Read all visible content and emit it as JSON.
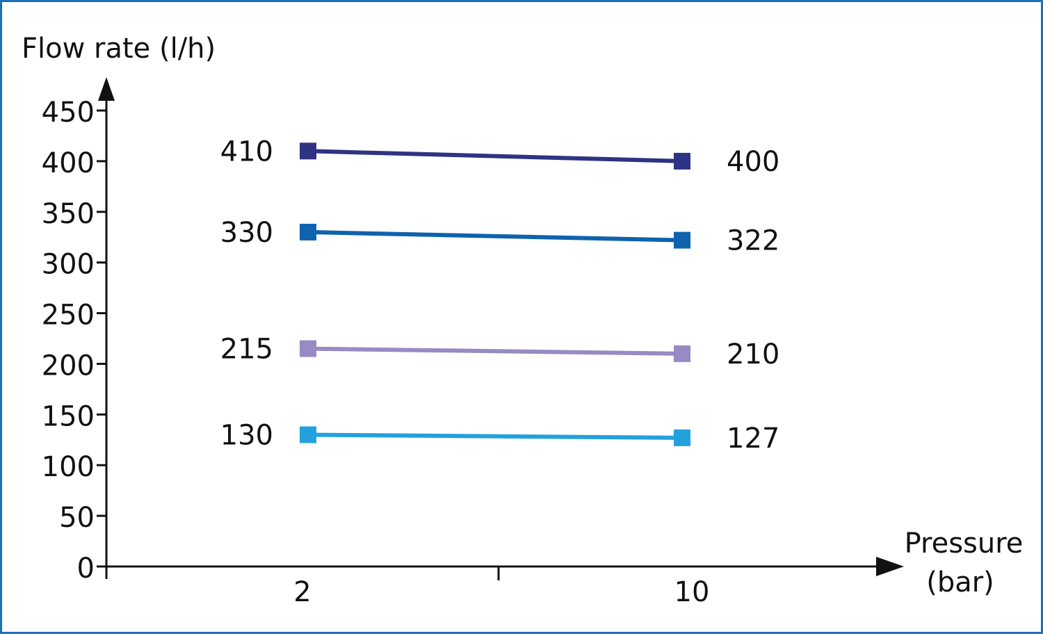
{
  "chart_data": {
    "type": "line",
    "ylabel": "Flow rate (l/h)",
    "xlabel_line1": "Pressure",
    "xlabel_line2": "(bar)",
    "x": [
      2,
      10
    ],
    "x_tick_labels": [
      "2",
      "10"
    ],
    "ylim": [
      0,
      450
    ],
    "y_ticks": [
      0,
      50,
      100,
      150,
      200,
      250,
      300,
      350,
      400,
      450
    ],
    "grid": false,
    "series": [
      {
        "values": [
          410,
          400
        ],
        "color": "#2e3383",
        "labels": [
          "410",
          "400"
        ]
      },
      {
        "values": [
          330,
          322
        ],
        "color": "#0f62ad",
        "labels": [
          "330",
          "322"
        ]
      },
      {
        "values": [
          215,
          210
        ],
        "color": "#988ac4",
        "labels": [
          "215",
          "210"
        ]
      },
      {
        "values": [
          130,
          127
        ],
        "color": "#22a1dc",
        "labels": [
          "130",
          "127"
        ]
      }
    ]
  }
}
